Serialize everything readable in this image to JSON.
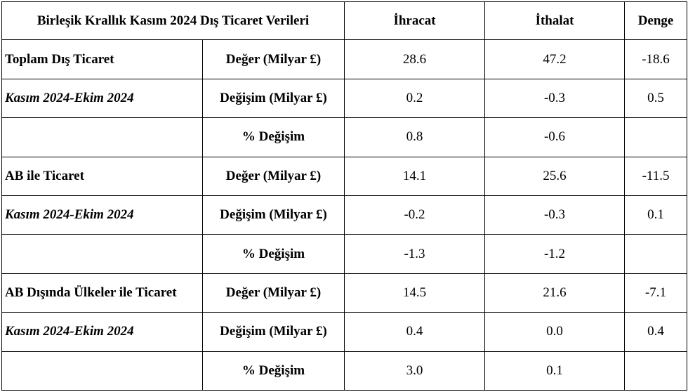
{
  "table": {
    "header": {
      "title": "Birleşik Krallık Kasım 2024 Dış Ticaret Verileri",
      "exports": "İhracat",
      "imports": "İthalat",
      "balance": "Denge"
    },
    "sections": [
      {
        "name": "Toplam Dış Ticaret",
        "period": "Kasım 2024-Ekim 2024",
        "rows": [
          {
            "metric": "Değer (Milyar £)",
            "exports": "28.6",
            "imports": "47.2",
            "balance": "-18.6"
          },
          {
            "metric": "Değişim (Milyar £)",
            "exports": "0.2",
            "imports": "-0.3",
            "balance": "0.5"
          },
          {
            "metric": "% Değişim",
            "exports": "0.8",
            "imports": "-0.6",
            "balance": ""
          }
        ]
      },
      {
        "name": "AB ile Ticaret",
        "period": "Kasım 2024-Ekim 2024",
        "rows": [
          {
            "metric": "Değer (Milyar £)",
            "exports": "14.1",
            "imports": "25.6",
            "balance": "-11.5"
          },
          {
            "metric": "Değişim (Milyar £)",
            "exports": "-0.2",
            "imports": "-0.3",
            "balance": "0.1"
          },
          {
            "metric": "% Değişim",
            "exports": "-1.3",
            "imports": "-1.2",
            "balance": ""
          }
        ]
      },
      {
        "name": "AB Dışında Ülkeler ile Ticaret",
        "period": "Kasım 2024-Ekim 2024",
        "rows": [
          {
            "metric": "Değer (Milyar £)",
            "exports": "14.5",
            "imports": "21.6",
            "balance": "-7.1"
          },
          {
            "metric": "Değişim (Milyar £)",
            "exports": "0.4",
            "imports": "0.0",
            "balance": "0.4"
          },
          {
            "metric": "% Değişim",
            "exports": "3.0",
            "imports": "0.1",
            "balance": ""
          }
        ]
      }
    ]
  }
}
